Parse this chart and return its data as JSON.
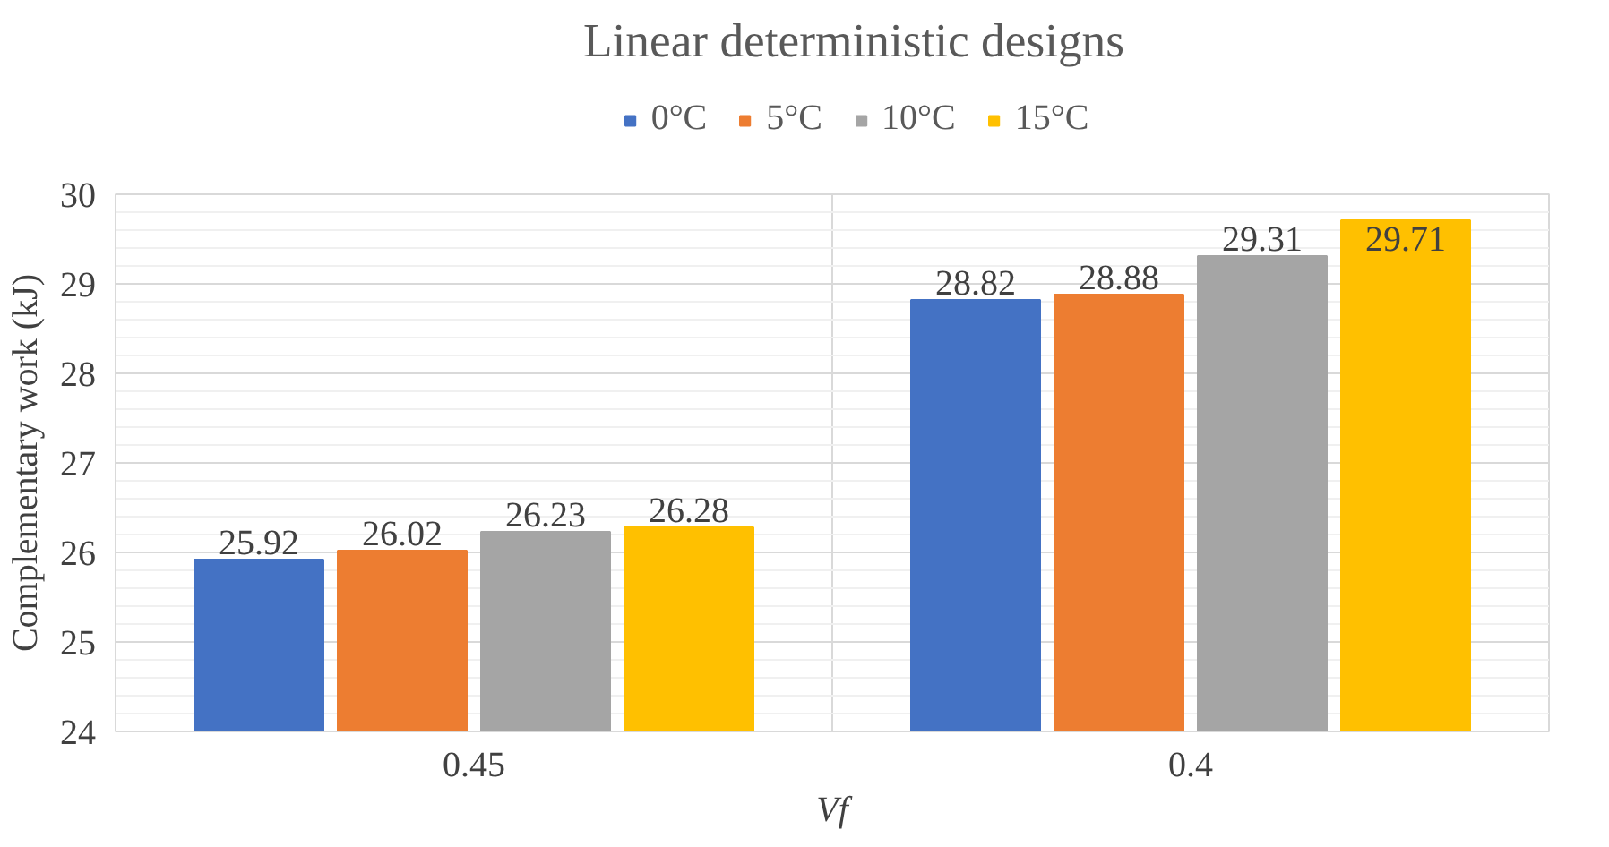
{
  "chart_data": {
    "type": "bar",
    "title": "Linear deterministic designs",
    "xlabel": "Vf",
    "ylabel": "Complementary work (kJ)",
    "categories": [
      "0.45",
      "0.4"
    ],
    "series": [
      {
        "name": "0°C",
        "color": "#4472c4",
        "values": [
          25.92,
          28.82
        ]
      },
      {
        "name": "5°C",
        "color": "#ed7d31",
        "values": [
          26.02,
          28.88
        ]
      },
      {
        "name": "10°C",
        "color": "#a5a5a5",
        "values": [
          26.23,
          29.31
        ]
      },
      {
        "name": "15°C",
        "color": "#ffc000",
        "values": [
          26.28,
          29.71
        ]
      }
    ],
    "ylim": [
      24,
      30
    ],
    "yticks": [
      24,
      25,
      26,
      27,
      28,
      29,
      30
    ],
    "grid": true,
    "legend": "top",
    "data_labels": true
  }
}
